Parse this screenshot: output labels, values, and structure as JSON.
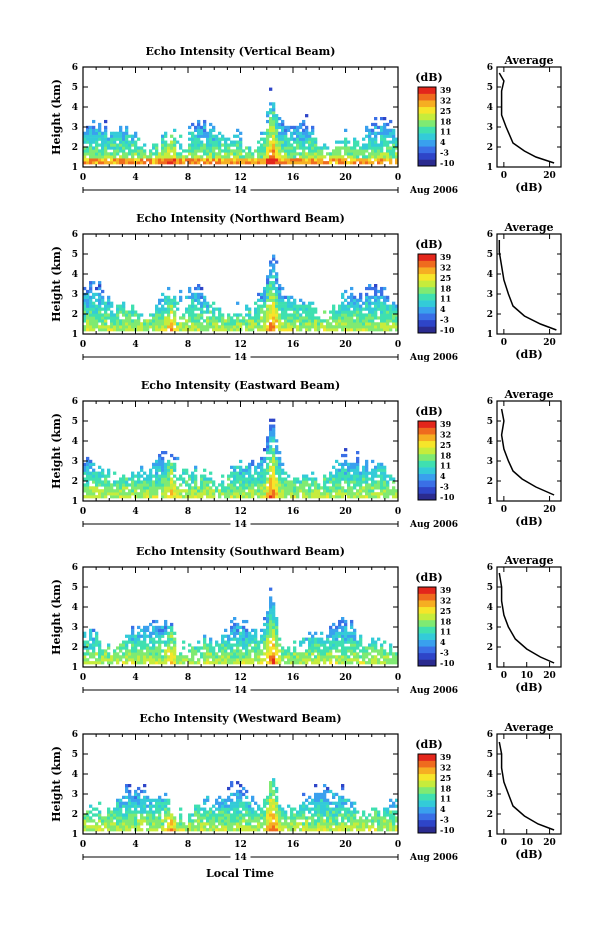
{
  "figure": {
    "common_xlabel": "Local Time",
    "date_label": "Aug 2006",
    "day_label": "14"
  },
  "colorbar": {
    "unit_label": "(dB)",
    "tick_labels": [
      "39",
      "32",
      "25",
      "18",
      "11",
      "4",
      "-3",
      "-10"
    ],
    "colors": [
      "#2b2b8f",
      "#2e45c8",
      "#3a6fe6",
      "#39a0ee",
      "#33cbd8",
      "#3fe0b0",
      "#7fea72",
      "#c6ec3c",
      "#f6e52a",
      "#f6ae22",
      "#ef6b1e",
      "#e3261b"
    ]
  },
  "chart_data": [
    {
      "type": "heatmap",
      "title": "Echo Intensity (Vertical Beam)",
      "xlabel": "",
      "ylabel": "Height (km)",
      "xlim": [
        0,
        24
      ],
      "ylim": [
        1,
        6
      ],
      "x_ticks": [
        "0",
        "4",
        "8",
        "12",
        "16",
        "20",
        "0"
      ],
      "y_ticks": [
        "1",
        "2",
        "3",
        "4",
        "5",
        "6"
      ],
      "zlim": [
        -10,
        39
      ],
      "profile": {
        "title": "Average",
        "xlabel": "(dB)",
        "x_ticks": [
          "0",
          "20"
        ],
        "xlim": [
          -3,
          25
        ],
        "ylim": [
          1,
          6
        ],
        "x": [
          22,
          14,
          9,
          4,
          1,
          -1,
          -1,
          -1,
          0,
          -2
        ],
        "y": [
          1.2,
          1.5,
          1.8,
          2.2,
          3,
          3.6,
          4.3,
          4.8,
          5.3,
          5.7
        ]
      }
    },
    {
      "type": "heatmap",
      "title": "Echo Intensity (Northward Beam)",
      "xlabel": "",
      "ylabel": "Height (km)",
      "xlim": [
        0,
        24
      ],
      "ylim": [
        1,
        6
      ],
      "x_ticks": [
        "0",
        "4",
        "8",
        "12",
        "16",
        "20",
        "0"
      ],
      "y_ticks": [
        "1",
        "2",
        "3",
        "4",
        "5",
        "6"
      ],
      "zlim": [
        -10,
        39
      ],
      "profile": {
        "title": "Average",
        "xlabel": "(dB)",
        "x_ticks": [
          "0",
          "20"
        ],
        "xlim": [
          -3,
          25
        ],
        "ylim": [
          1,
          6
        ],
        "x": [
          23,
          16,
          9,
          4,
          2,
          0,
          -1,
          -2,
          -2
        ],
        "y": [
          1.2,
          1.5,
          1.9,
          2.4,
          3,
          3.7,
          4.4,
          5.1,
          5.7
        ]
      }
    },
    {
      "type": "heatmap",
      "title": "Echo Intensity (Eastward Beam)",
      "xlabel": "",
      "ylabel": "Height (km)",
      "xlim": [
        0,
        24
      ],
      "ylim": [
        1,
        6
      ],
      "x_ticks": [
        "0",
        "4",
        "8",
        "12",
        "16",
        "20",
        "0"
      ],
      "y_ticks": [
        "1",
        "2",
        "3",
        "4",
        "5",
        "6"
      ],
      "zlim": [
        -10,
        39
      ],
      "profile": {
        "title": "Average",
        "xlabel": "(dB)",
        "x_ticks": [
          "0",
          "20"
        ],
        "xlim": [
          -3,
          25
        ],
        "ylim": [
          1,
          6
        ],
        "x": [
          22,
          14,
          8,
          4,
          2,
          0,
          -1,
          0,
          -1
        ],
        "y": [
          1.3,
          1.7,
          2.1,
          2.5,
          3,
          3.6,
          4.3,
          5,
          5.6
        ]
      }
    },
    {
      "type": "heatmap",
      "title": "Echo Intensity (Southward Beam)",
      "xlabel": "",
      "ylabel": "Height (km)",
      "xlim": [
        0,
        24
      ],
      "ylim": [
        1,
        6
      ],
      "x_ticks": [
        "0",
        "4",
        "8",
        "12",
        "16",
        "20",
        "0"
      ],
      "y_ticks": [
        "1",
        "2",
        "3",
        "4",
        "5",
        "6"
      ],
      "zlim": [
        -10,
        39
      ],
      "profile": {
        "title": "Average",
        "xlabel": "(dB)",
        "x_ticks": [
          "0",
          "10",
          "20"
        ],
        "xlim": [
          -3,
          25
        ],
        "ylim": [
          1,
          6
        ],
        "x": [
          22,
          16,
          10,
          5,
          2,
          0,
          -1,
          -1,
          -2
        ],
        "y": [
          1.2,
          1.5,
          1.9,
          2.4,
          3,
          3.6,
          4.3,
          5,
          5.7
        ]
      }
    },
    {
      "type": "heatmap",
      "title": "Echo Intensity (Westward Beam)",
      "xlabel": "",
      "ylabel": "Height (km)",
      "xlim": [
        0,
        24
      ],
      "ylim": [
        1,
        6
      ],
      "x_ticks": [
        "0",
        "4",
        "8",
        "12",
        "16",
        "20",
        "0"
      ],
      "y_ticks": [
        "1",
        "2",
        "3",
        "4",
        "5",
        "6"
      ],
      "zlim": [
        -10,
        39
      ],
      "profile": {
        "title": "Average",
        "xlabel": "(dB)",
        "x_ticks": [
          "0",
          "10",
          "20"
        ],
        "xlim": [
          -3,
          25
        ],
        "ylim": [
          1,
          6
        ],
        "x": [
          22,
          15,
          9,
          4,
          2,
          0,
          -1,
          -1,
          -2
        ],
        "y": [
          1.2,
          1.5,
          1.9,
          2.4,
          3,
          3.6,
          4.3,
          5,
          5.6
        ]
      }
    }
  ]
}
